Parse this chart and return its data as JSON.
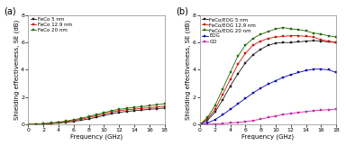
{
  "freq": [
    0,
    1,
    2,
    3,
    4,
    5,
    6,
    7,
    8,
    9,
    10,
    11,
    12,
    13,
    14,
    15,
    16,
    17,
    18
  ],
  "a_feco5": [
    0.0,
    0.01,
    0.03,
    0.06,
    0.1,
    0.15,
    0.22,
    0.3,
    0.4,
    0.52,
    0.65,
    0.78,
    0.88,
    0.95,
    1.0,
    1.05,
    1.1,
    1.15,
    1.2
  ],
  "a_feco12": [
    0.0,
    0.01,
    0.04,
    0.08,
    0.13,
    0.2,
    0.28,
    0.38,
    0.5,
    0.63,
    0.76,
    0.9,
    1.0,
    1.07,
    1.12,
    1.17,
    1.22,
    1.28,
    1.33
  ],
  "a_feco20": [
    0.0,
    0.02,
    0.05,
    0.1,
    0.16,
    0.24,
    0.34,
    0.45,
    0.58,
    0.72,
    0.86,
    1.0,
    1.1,
    1.18,
    1.24,
    1.3,
    1.37,
    1.44,
    1.52
  ],
  "b_fecoeog5": [
    0.0,
    0.3,
    0.9,
    1.8,
    2.8,
    3.7,
    4.5,
    5.1,
    5.5,
    5.8,
    5.95,
    6.0,
    6.0,
    6.05,
    6.1,
    6.15,
    6.1,
    6.05,
    6.0
  ],
  "b_fecoeog12": [
    0.0,
    0.4,
    1.1,
    2.2,
    3.3,
    4.4,
    5.2,
    5.8,
    6.1,
    6.3,
    6.4,
    6.45,
    6.5,
    6.5,
    6.45,
    6.4,
    6.2,
    6.1,
    6.0
  ],
  "b_fecoeog20": [
    0.0,
    0.5,
    1.4,
    2.6,
    3.8,
    5.0,
    5.8,
    6.3,
    6.6,
    6.8,
    7.0,
    7.1,
    7.0,
    6.95,
    6.85,
    6.7,
    6.6,
    6.5,
    6.4
  ],
  "b_eog": [
    0.0,
    0.1,
    0.35,
    0.7,
    1.1,
    1.5,
    1.9,
    2.3,
    2.65,
    2.95,
    3.2,
    3.45,
    3.65,
    3.8,
    3.95,
    4.05,
    4.05,
    4.0,
    3.8
  ],
  "b_go": [
    0.0,
    0.01,
    0.03,
    0.06,
    0.1,
    0.15,
    0.2,
    0.28,
    0.38,
    0.5,
    0.62,
    0.72,
    0.8,
    0.88,
    0.94,
    1.0,
    1.04,
    1.08,
    1.12
  ],
  "color_black": "#1a1a1a",
  "color_red": "#cc1100",
  "color_green": "#226600",
  "color_blue": "#0000bb",
  "color_pink": "#cc22aa",
  "ylabel": "Shielding effectiveness, SE (dB)",
  "xlabel": "Frequency (GHz)",
  "ylim": [
    0,
    8
  ],
  "yticks": [
    0,
    2,
    4,
    6,
    8
  ],
  "xticks": [
    0,
    2,
    4,
    6,
    8,
    10,
    12,
    14,
    16,
    18
  ],
  "label_a1": "FeCo 5 nm",
  "label_a2": "FeCo 12.9 nm",
  "label_a3": "FeCo 20 nm",
  "label_b1": "FeCo/EOG 5 nm",
  "label_b2": "FeCo/EOG 12.9 nm",
  "label_b3": "FeCo/EOG 20 nm",
  "label_b4": "EOG",
  "label_b5": "GO",
  "panel_a": "(a)",
  "panel_b": "(b)",
  "marker": "s",
  "markersize": 1.6,
  "linewidth": 0.6,
  "legend_fontsize": 4.0,
  "label_fontsize": 5.0,
  "tick_fontsize": 4.5,
  "panel_fontsize": 7.0,
  "bg_color": "#ffffff"
}
